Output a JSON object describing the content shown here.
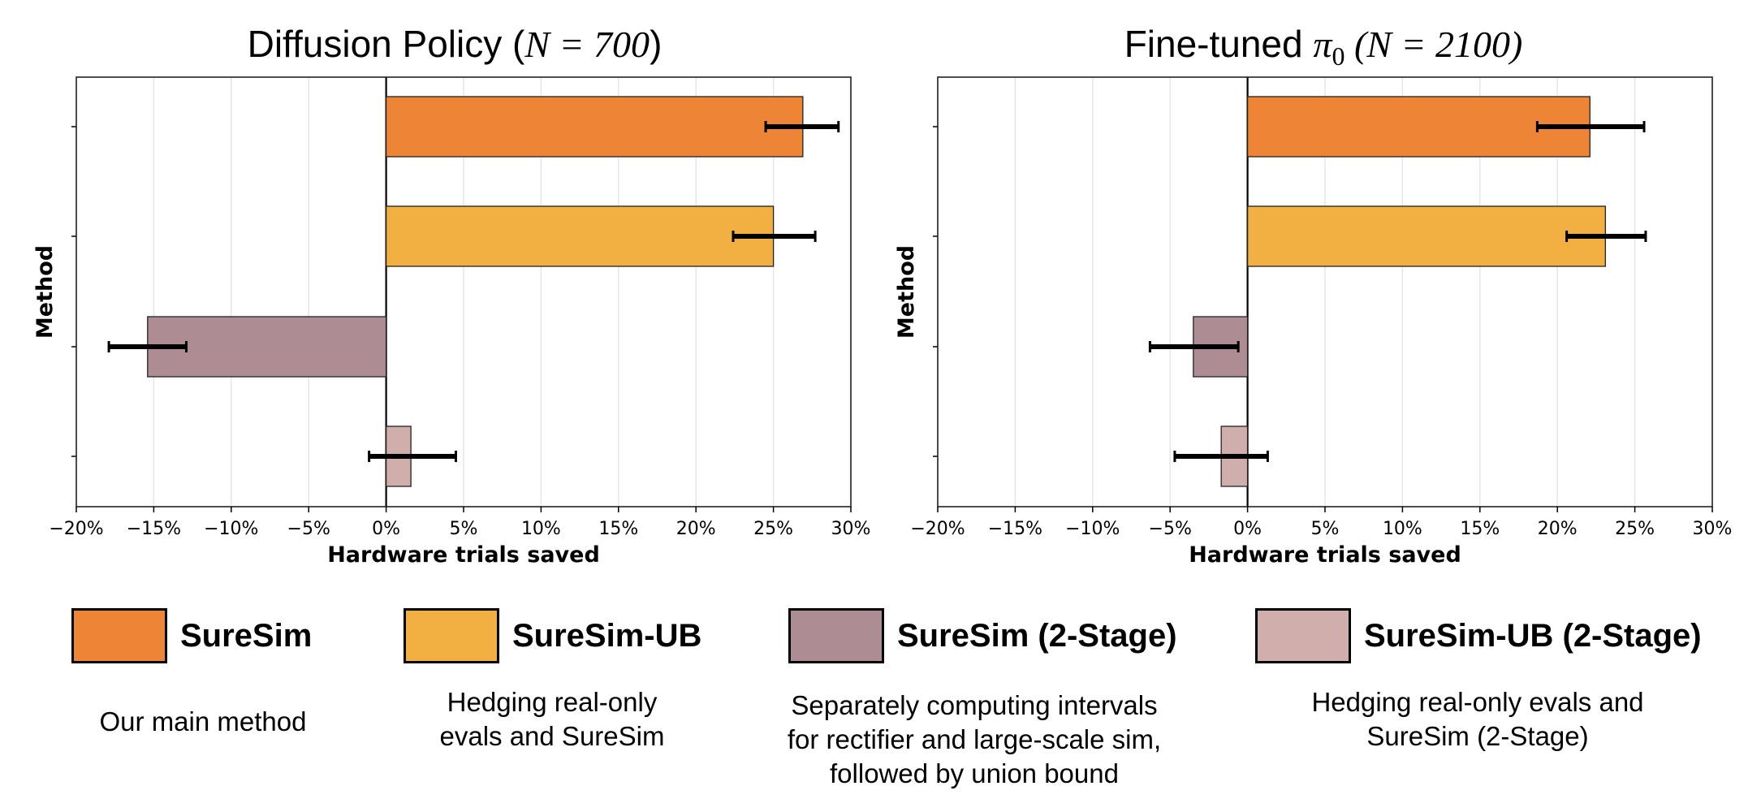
{
  "chart_data": [
    {
      "type": "bar",
      "orientation": "horizontal",
      "title_prefix": "Diffusion Policy (",
      "title_math": "N = 700",
      "title_suffix": ")",
      "xlabel": "Hardware trials saved",
      "ylabel": "Method",
      "xlim": [
        -20,
        30
      ],
      "xticks": [
        -20,
        -15,
        -10,
        -5,
        0,
        5,
        10,
        15,
        20,
        25,
        30
      ],
      "xtick_labels": [
        "−20%",
        "−15%",
        "−10%",
        "−5%",
        "0%",
        "5%",
        "10%",
        "15%",
        "20%",
        "25%",
        "30%"
      ],
      "grid": true,
      "series": [
        {
          "name": "SureSim",
          "value": 26.9,
          "err_low": 24.5,
          "err_high": 29.2
        },
        {
          "name": "SureSim-UB",
          "value": 25.0,
          "err_low": 22.4,
          "err_high": 27.7
        },
        {
          "name": "SureSim (2-Stage)",
          "value": -15.4,
          "err_low": -17.9,
          "err_high": -12.9
        },
        {
          "name": "SureSim-UB (2-Stage)",
          "value": 1.6,
          "err_low": -1.1,
          "err_high": 4.5
        }
      ]
    },
    {
      "type": "bar",
      "orientation": "horizontal",
      "title_prefix": "Fine-tuned ",
      "title_math": "π",
      "title_sub": "0",
      "title_math2": " (N = 2100)",
      "xlabel": "Hardware trials saved",
      "ylabel": "Method",
      "xlim": [
        -20,
        30
      ],
      "xticks": [
        -20,
        -15,
        -10,
        -5,
        0,
        5,
        10,
        15,
        20,
        25,
        30
      ],
      "xtick_labels": [
        "−20%",
        "−15%",
        "−10%",
        "−5%",
        "0%",
        "5%",
        "10%",
        "15%",
        "20%",
        "25%",
        "30%"
      ],
      "grid": true,
      "series": [
        {
          "name": "SureSim",
          "value": 22.1,
          "err_low": 18.7,
          "err_high": 25.6
        },
        {
          "name": "SureSim-UB",
          "value": 23.1,
          "err_low": 20.6,
          "err_high": 25.7
        },
        {
          "name": "SureSim (2-Stage)",
          "value": -3.5,
          "err_low": -6.3,
          "err_high": -0.6
        },
        {
          "name": "SureSim-UB (2-Stage)",
          "value": -1.7,
          "err_low": -4.7,
          "err_high": 1.3
        }
      ]
    }
  ],
  "colors": {
    "SureSim": "#ee8536",
    "SureSim-UB": "#f2b042",
    "SureSim (2-Stage)": "#ad8c93",
    "SureSim-UB (2-Stage)": "#cfaeab"
  },
  "legend": [
    {
      "label": "SureSim",
      "description": [
        "Our main method"
      ]
    },
    {
      "label": "SureSim-UB",
      "description": [
        "Hedging real-only",
        "evals and SureSim"
      ]
    },
    {
      "label": "SureSim (2-Stage)",
      "description": [
        "Separately computing intervals",
        "for rectifier and large-scale sim,",
        "followed by union bound"
      ]
    },
    {
      "label": "SureSim-UB (2-Stage)",
      "description": [
        "Hedging real-only evals and",
        "SureSim (2-Stage)"
      ]
    }
  ]
}
